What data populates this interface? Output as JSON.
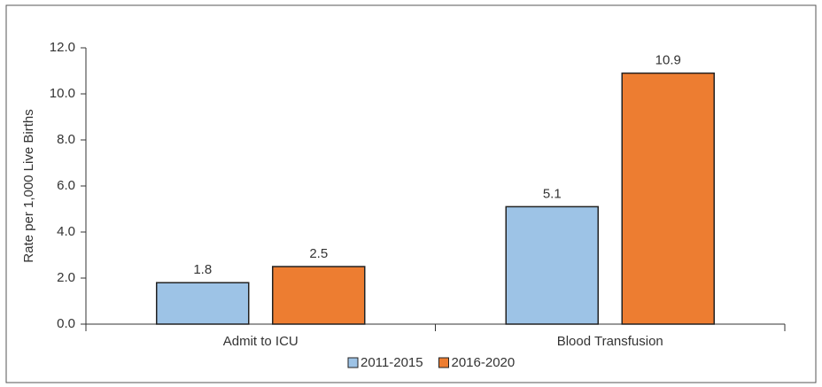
{
  "chart_data": {
    "type": "bar",
    "y_label": "Rate per 1,000 Live Births",
    "categories": [
      "Admit to ICU",
      "Blood Transfusion"
    ],
    "series": [
      {
        "name": "2011-2015",
        "color": "#9dc3e6",
        "values": [
          1.8,
          5.1
        ]
      },
      {
        "name": "2016-2020",
        "color": "#ed7d31",
        "values": [
          2.5,
          10.9
        ]
      }
    ],
    "ylim": [
      0,
      12
    ],
    "yticks": [
      {
        "value": 0,
        "label": "0.0"
      },
      {
        "value": 2,
        "label": "2.0"
      },
      {
        "value": 4,
        "label": "4.0"
      },
      {
        "value": 6,
        "label": "6.0"
      },
      {
        "value": 8,
        "label": "8.0"
      },
      {
        "value": 10,
        "label": "10.0"
      },
      {
        "value": 12,
        "label": "12.0"
      }
    ],
    "legend": "bottom"
  }
}
